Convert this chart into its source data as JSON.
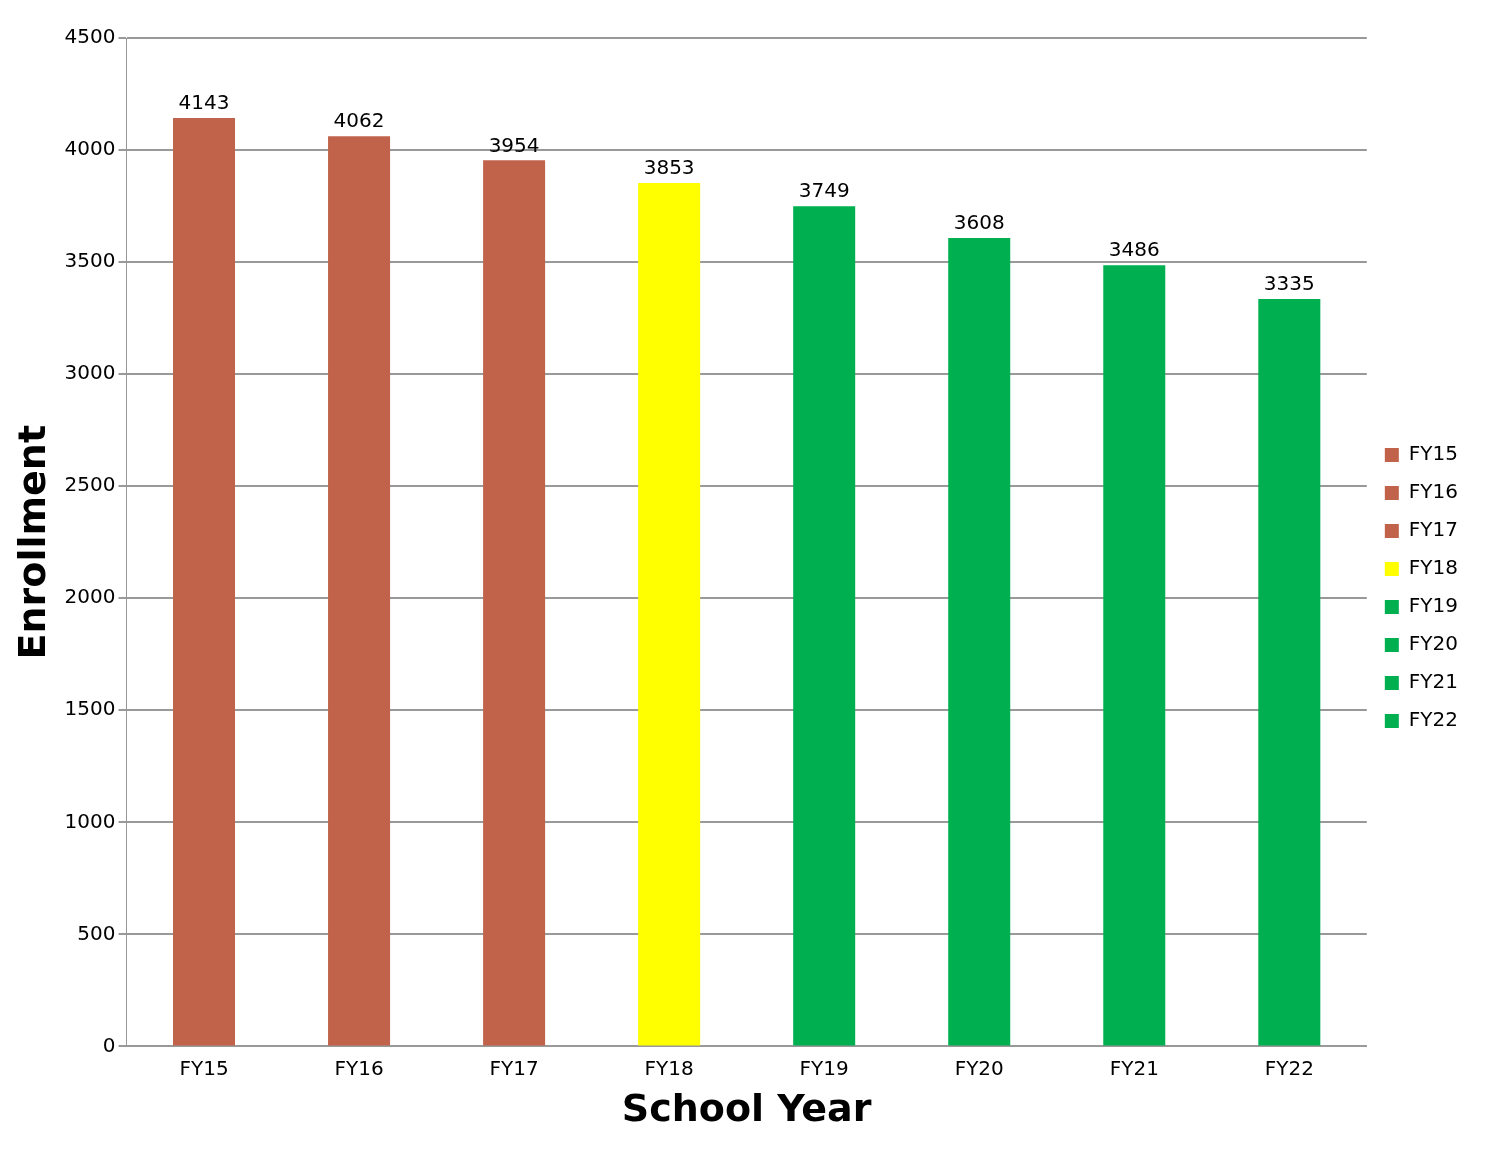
{
  "chart_data": {
    "type": "bar",
    "xlabel": "School Year",
    "ylabel": "Enrollment",
    "categories": [
      "FY15",
      "FY16",
      "FY17",
      "FY18",
      "FY19",
      "FY20",
      "FY21",
      "FY22"
    ],
    "series": [
      {
        "name": "FY15",
        "color": "#c0634a",
        "values": [
          4143,
          null,
          null,
          null,
          null,
          null,
          null,
          null
        ]
      },
      {
        "name": "FY16",
        "color": "#c0634a",
        "values": [
          null,
          4062,
          null,
          null,
          null,
          null,
          null,
          null
        ]
      },
      {
        "name": "FY17",
        "color": "#c0634a",
        "values": [
          null,
          null,
          3954,
          null,
          null,
          null,
          null,
          null
        ]
      },
      {
        "name": "FY18",
        "color": "#ffff00",
        "values": [
          null,
          null,
          null,
          3853,
          null,
          null,
          null,
          null
        ]
      },
      {
        "name": "FY19",
        "color": "#00b050",
        "values": [
          null,
          null,
          null,
          null,
          3749,
          null,
          null,
          null
        ]
      },
      {
        "name": "FY20",
        "color": "#00b050",
        "values": [
          null,
          null,
          null,
          null,
          null,
          3608,
          null,
          null
        ]
      },
      {
        "name": "FY21",
        "color": "#00b050",
        "values": [
          null,
          null,
          null,
          null,
          null,
          null,
          3486,
          null
        ]
      },
      {
        "name": "FY22",
        "color": "#00b050",
        "values": [
          null,
          null,
          null,
          null,
          null,
          null,
          null,
          3335
        ]
      }
    ],
    "ylim": [
      0,
      4500
    ],
    "yticks": [
      0,
      500,
      1000,
      1500,
      2000,
      2500,
      3000,
      3500,
      4000,
      4500
    ],
    "grid": "y",
    "legend": "right",
    "data_labels": true
  }
}
